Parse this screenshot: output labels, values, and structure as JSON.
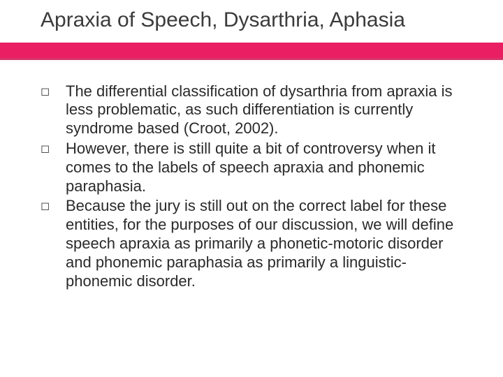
{
  "slide": {
    "title": "Apraxia of Speech, Dysarthria, Aphasia",
    "accent_color": "#e91e63",
    "accent_thin_color": "#d6346d",
    "background_color": "#ffffff",
    "title_color": "#3b3b3b",
    "title_fontsize": 30,
    "body_fontsize": 22,
    "body_color": "#2a2a2a",
    "bullet_glyph": "◻",
    "bullets": [
      "The differential classification of dysarthria from apraxia is less problematic, as such differentiation is currently syndrome based (Croot, 2002).",
      "However, there is still quite a bit of controversy when it comes to the labels of speech apraxia and phonemic paraphasia.",
      "Because the jury is still out on the correct label for these entities, for the purposes of our discussion, we will define speech apraxia as primarily a phonetic-motoric disorder and phonemic paraphasia as primarily a linguistic- phonemic disorder."
    ]
  }
}
